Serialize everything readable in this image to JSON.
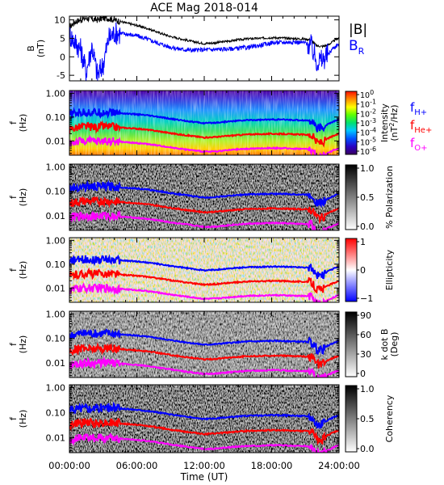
{
  "title": "ACE Mag 2018-014",
  "xlabel": "Time (UT)",
  "xticks": [
    "00:00:00",
    "06:00:00",
    "12:00:00",
    "18:00:00",
    "24:00:00"
  ],
  "chart_data": [
    {
      "type": "line",
      "name": "B",
      "ylabel": [
        "B",
        "(nT)"
      ],
      "ylim": [
        -6.5,
        11
      ],
      "yticks": [
        -5,
        0,
        5,
        10
      ],
      "x": [
        0,
        0.5,
        1,
        1.5,
        2,
        2.5,
        3,
        3.5,
        4,
        5,
        6,
        7,
        8,
        9,
        10,
        11,
        12,
        13,
        14,
        15,
        16,
        17,
        18,
        19,
        20,
        21,
        21.5,
        22,
        22.5,
        23,
        23.5,
        24
      ],
      "series": [
        {
          "name": "|B|",
          "color": "#000000",
          "values": [
            8,
            9.5,
            10,
            10.5,
            10.2,
            10,
            10.5,
            10.4,
            10,
            9.2,
            8.5,
            7.6,
            6.5,
            5.5,
            4.8,
            4.1,
            3.6,
            3.8,
            4.2,
            4.6,
            4.9,
            5.0,
            5.2,
            5.1,
            4.9,
            4.8,
            4.6,
            3.0,
            2.8,
            3.2,
            4.2,
            5.2
          ]
        },
        {
          "name": "B_R",
          "color": "#0000ff",
          "values": [
            6,
            4,
            2,
            -4,
            3,
            -5,
            -2,
            5,
            6.5,
            6.2,
            5.7,
            4.7,
            3.6,
            2.6,
            2.0,
            1.8,
            1.9,
            2.0,
            2.1,
            2.3,
            2.6,
            3.1,
            3.8,
            3.9,
            4.0,
            3.8,
            3.0,
            -1.2,
            -1.0,
            0.5,
            2.5,
            3.5
          ]
        }
      ],
      "legend": [
        {
          "text": "|B|",
          "sub": "",
          "color": "#000000"
        },
        {
          "text": "B",
          "sub": "R",
          "color": "#0000ff"
        }
      ]
    },
    {
      "type": "heatmap",
      "name": "Intensity",
      "ylabel": [
        "f",
        "(Hz)"
      ],
      "yscale": "log",
      "ylim": [
        0.0025,
        1.3
      ],
      "yticks": [
        "1.00",
        "0.10",
        "0.01"
      ],
      "colorbar": {
        "scale": "jet",
        "labels": [
          "10^0",
          "10^-1",
          "10^-2",
          "10^-3",
          "10^-4",
          "10^-5",
          "10^-6"
        ],
        "title": "Intensity (nT^2/Hz)"
      },
      "legend": [
        {
          "text": "f",
          "sub": "H+",
          "color": "#0000ff"
        },
        {
          "text": "f",
          "sub": "He+",
          "color": "#ff0000"
        },
        {
          "text": "f",
          "sub": "O+",
          "color": "#ff00ff"
        }
      ]
    },
    {
      "type": "heatmap",
      "name": "Polarization",
      "ylabel": [
        "f",
        "(Hz)"
      ],
      "yscale": "log",
      "ylim": [
        0.0025,
        1.3
      ],
      "yticks": [
        "1.00",
        "0.10",
        "0.01"
      ],
      "colorbar": {
        "scale": "gray",
        "labels": [
          "1.0",
          "0.5",
          "0.0"
        ],
        "title": "% Polarization"
      }
    },
    {
      "type": "heatmap",
      "name": "Ellipticity",
      "ylabel": [
        "f",
        "(Hz)"
      ],
      "yscale": "log",
      "ylim": [
        0.0025,
        1.3
      ],
      "yticks": [
        "1.00",
        "0.10",
        "0.01"
      ],
      "colorbar": {
        "scale": "bwr",
        "labels": [
          "1",
          "0",
          "−1"
        ],
        "title": "Ellipticity"
      }
    },
    {
      "type": "heatmap",
      "name": "k dot B",
      "ylabel": [
        "f",
        "(Hz)"
      ],
      "yscale": "log",
      "ylim": [
        0.0025,
        1.3
      ],
      "yticks": [
        "1.00",
        "0.10",
        "0.01"
      ],
      "colorbar": {
        "scale": "gray",
        "labels": [
          "90",
          "60",
          "30",
          "0"
        ],
        "title": "k dot B (Deg)"
      }
    },
    {
      "type": "heatmap",
      "name": "Coherency",
      "ylabel": [
        "f",
        "(Hz)"
      ],
      "yscale": "log",
      "ylim": [
        0.0025,
        1.3
      ],
      "yticks": [
        "1.00",
        "0.10",
        "0.01"
      ],
      "colorbar": {
        "scale": "gray",
        "labels": [
          "1.0",
          "0.5",
          "0.0"
        ],
        "title": "Coherency"
      }
    }
  ],
  "gyrofrequency_lines": {
    "x": [
      0,
      0.5,
      1,
      1.5,
      2,
      2.5,
      3,
      3.5,
      4,
      5,
      6,
      7,
      8,
      9,
      10,
      11,
      12,
      13,
      14,
      15,
      16,
      17,
      18,
      19,
      20,
      21,
      21.5,
      22,
      22.5,
      23,
      23.5,
      24
    ],
    "series": [
      {
        "name": "f_H+",
        "color": "#0000ff",
        "values": [
          0.12,
          0.145,
          0.152,
          0.16,
          0.155,
          0.152,
          0.16,
          0.158,
          0.152,
          0.14,
          0.13,
          0.116,
          0.1,
          0.084,
          0.073,
          0.063,
          0.055,
          0.058,
          0.064,
          0.07,
          0.075,
          0.076,
          0.079,
          0.078,
          0.075,
          0.073,
          0.07,
          0.035,
          0.033,
          0.05,
          0.064,
          0.079
        ]
      },
      {
        "name": "f_He+",
        "color": "#ff0000",
        "values": [
          0.03,
          0.036,
          0.038,
          0.04,
          0.039,
          0.038,
          0.04,
          0.0395,
          0.038,
          0.035,
          0.0325,
          0.029,
          0.025,
          0.021,
          0.018,
          0.0158,
          0.0138,
          0.0145,
          0.016,
          0.0175,
          0.0188,
          0.019,
          0.0198,
          0.0195,
          0.0188,
          0.0183,
          0.0175,
          0.0088,
          0.0083,
          0.0125,
          0.016,
          0.0198
        ]
      },
      {
        "name": "f_O+",
        "color": "#ff00ff",
        "values": [
          0.0075,
          0.009,
          0.0095,
          0.01,
          0.0097,
          0.0095,
          0.01,
          0.0099,
          0.0095,
          0.0088,
          0.0081,
          0.0073,
          0.0063,
          0.0053,
          0.0046,
          0.004,
          0.0035,
          0.0036,
          0.004,
          0.0044,
          0.0047,
          0.0048,
          0.005,
          0.0049,
          0.0047,
          0.0046,
          0.0044,
          0.0022,
          0.0021,
          0.0031,
          0.004,
          0.005
        ]
      }
    ]
  },
  "colors": {
    "axis": "#000000",
    "title": "#000000"
  }
}
